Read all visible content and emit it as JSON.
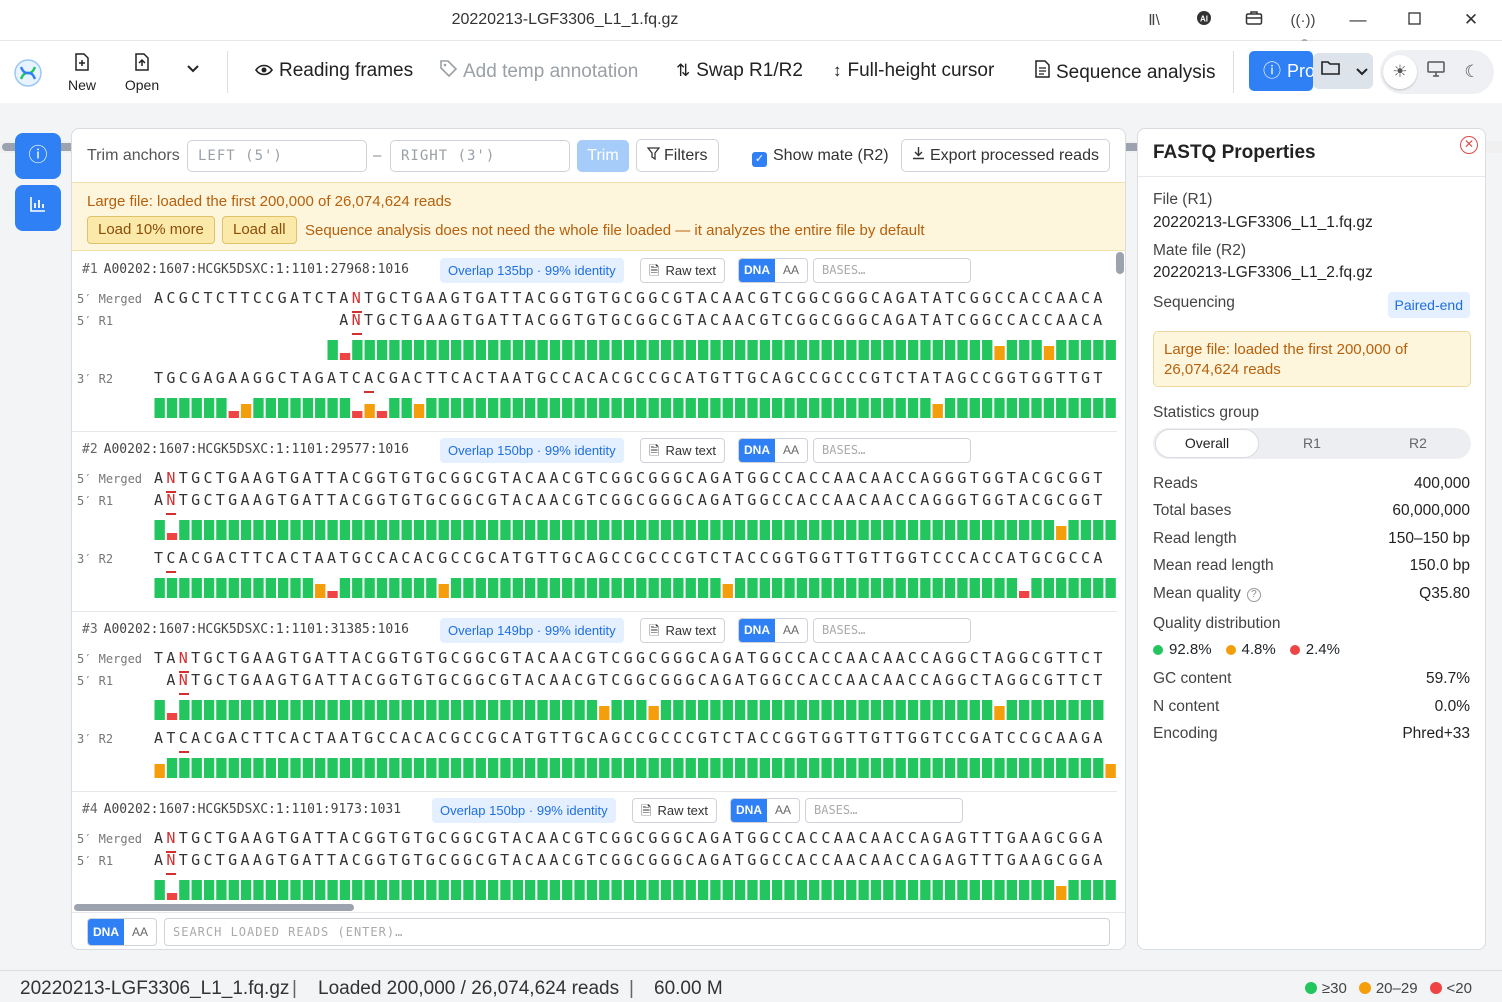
{
  "window": {
    "title": "20220213-LGF3306_L1_1.fq.gz"
  },
  "toolbar": {
    "new_label": "New",
    "open_label": "Open",
    "reading_frames": "Reading frames",
    "add_temp_annotation": "Add temp annotation",
    "swap": "Swap R1/R2",
    "full_height_cursor": "Full-height cursor",
    "sequence_analysis": "Sequence analysis",
    "pro_label": "Pro"
  },
  "controls": {
    "trim_anchors": "Trim anchors",
    "left_placeholder": "LEFT (5')",
    "dash": "–",
    "right_placeholder": "RIGHT (3')",
    "trim": "Trim",
    "filters": "Filters",
    "show_mate": "Show mate (R2)",
    "export": "Export processed reads"
  },
  "banner": {
    "message": "Large file: loaded the first 200,000 of 26,074,624 reads",
    "load_more": "Load 10% more",
    "load_all": "Load all",
    "note": "Sequence analysis does not need the whole file loaded — it analyzes the entire file by default"
  },
  "read_ui": {
    "raw_text": "Raw text",
    "dna": "DNA",
    "aa": "AA",
    "bases_placeholder": "BASES…"
  },
  "row_labels": {
    "merged": "5′ Merged",
    "r1": "5′ R1",
    "r2": "3′ R2"
  },
  "reads": [
    {
      "num": "#1",
      "id": "A00202:1607:HCGK5DSXC:1:1101:27968:1016",
      "overlap": "Overlap 135bp · 99% identity",
      "merged": "ACGCTCTTCCGATCTANTGCTGAAGTGATTACGGTGTGCGGCGTACAACGTCGGCGGGCAGATATCGGCCACCAACA",
      "r1": "ANTGCTGAAGTGATTACGGTGTGCGGCGTACAACGTCGGCGGGCAGATATCGGCCACCAACA",
      "r1_offset": 15,
      "r1_quality": [
        2,
        0,
        2,
        2,
        2,
        2,
        2,
        2,
        2,
        2,
        2,
        2,
        2,
        2,
        2,
        2,
        2,
        2,
        2,
        2,
        2,
        2,
        2,
        2,
        2,
        2,
        2,
        2,
        2,
        2,
        2,
        2,
        2,
        2,
        2,
        2,
        2,
        2,
        2,
        2,
        2,
        2,
        2,
        2,
        2,
        2,
        2,
        2,
        2,
        2,
        2,
        2,
        2,
        2,
        1,
        2,
        2,
        2,
        1,
        2,
        2,
        2,
        2,
        2,
        2,
        2,
        2,
        2,
        2,
        2,
        2,
        2,
        2,
        2,
        2,
        2,
        2
      ],
      "r2": "TGCGAGAAGGCTAGATCACGACTTCACTAATGCCACACGCCGCATGTTGCAGCCGCCCGTCTATAGCCGGTGGTTGT",
      "r2_marks": [
        17
      ],
      "r2_quality": [
        2,
        2,
        2,
        2,
        2,
        2,
        0,
        1,
        2,
        2,
        2,
        2,
        2,
        2,
        2,
        2,
        0,
        1,
        0,
        2,
        2,
        1,
        2,
        2,
        2,
        2,
        2,
        2,
        2,
        2,
        2,
        2,
        2,
        2,
        2,
        2,
        2,
        2,
        2,
        2,
        2,
        2,
        2,
        2,
        2,
        2,
        2,
        2,
        2,
        2,
        2,
        2,
        2,
        2,
        2,
        2,
        2,
        2,
        2,
        2,
        2,
        2,
        2,
        1,
        2,
        2,
        2,
        2,
        2,
        2,
        2,
        2,
        2,
        2,
        2,
        2,
        2,
        2
      ]
    },
    {
      "num": "#2",
      "id": "A00202:1607:HCGK5DSXC:1:1101:29577:1016",
      "overlap": "Overlap 150bp · 99% identity",
      "merged": "ANTGCTGAAGTGATTACGGTGTGCGGCGTACAACGTCGGCGGGCAGATGGCCACCAACAACCAGGGTGGTACGCGGT",
      "r1": "ANTGCTGAAGTGATTACGGTGTGCGGCGTACAACGTCGGCGGGCAGATGGCCACCAACAACCAGGGTGGTACGCGGT",
      "r1_offset": 0,
      "r1_quality": [
        2,
        0,
        2,
        2,
        2,
        2,
        2,
        2,
        2,
        2,
        2,
        2,
        2,
        2,
        2,
        2,
        2,
        2,
        2,
        2,
        2,
        2,
        2,
        2,
        2,
        2,
        2,
        2,
        2,
        2,
        2,
        2,
        2,
        2,
        2,
        2,
        2,
        2,
        2,
        2,
        2,
        2,
        2,
        2,
        2,
        2,
        2,
        2,
        2,
        2,
        2,
        2,
        2,
        2,
        2,
        2,
        2,
        2,
        2,
        2,
        2,
        2,
        2,
        2,
        2,
        2,
        2,
        2,
        2,
        2,
        2,
        2,
        2,
        1,
        2,
        2,
        2,
        2
      ],
      "r2": "TCACGACTTCACTAATGCCACACGCCGCATGTTGCAGCCGCCCGTCTACCGGTGGTTGTTGGTCCCACCATGCGCCA",
      "r2_marks": [
        1
      ],
      "r2_quality": [
        2,
        2,
        2,
        2,
        2,
        2,
        2,
        2,
        2,
        2,
        2,
        2,
        2,
        1,
        0,
        2,
        2,
        2,
        2,
        2,
        2,
        2,
        2,
        1,
        2,
        2,
        2,
        2,
        2,
        2,
        2,
        2,
        2,
        2,
        2,
        2,
        2,
        2,
        2,
        2,
        2,
        2,
        2,
        2,
        2,
        2,
        1,
        2,
        2,
        2,
        2,
        2,
        2,
        2,
        2,
        2,
        2,
        2,
        2,
        2,
        2,
        2,
        2,
        2,
        2,
        2,
        2,
        2,
        2,
        2,
        0,
        2,
        2,
        2,
        2,
        2,
        2,
        2
      ]
    },
    {
      "num": "#3",
      "id": "A00202:1607:HCGK5DSXC:1:1101:31385:1016",
      "overlap": "Overlap 149bp · 99% identity",
      "merged": "TANTGCTGAAGTGATTACGGTGTGCGGCGTACAACGTCGGCGGGCAGATGGCCACCAACAACCAGGCTAGGCGTTCT",
      "r1": "ANTGCTGAAGTGATTACGGTGTGCGGCGTACAACGTCGGCGGGCAGATGGCCACCAACAACCAGGCTAGGCGTTCT",
      "r1_offset": 1,
      "r1_quality": [
        2,
        0,
        2,
        2,
        2,
        2,
        2,
        2,
        2,
        2,
        2,
        2,
        2,
        2,
        2,
        2,
        2,
        2,
        2,
        2,
        2,
        2,
        2,
        2,
        2,
        2,
        2,
        2,
        2,
        2,
        2,
        2,
        2,
        2,
        2,
        2,
        1,
        2,
        2,
        2,
        1,
        2,
        2,
        2,
        2,
        2,
        2,
        2,
        2,
        2,
        2,
        2,
        2,
        2,
        2,
        2,
        2,
        2,
        2,
        2,
        2,
        2,
        2,
        2,
        2,
        2,
        2,
        2,
        1,
        2,
        2,
        2,
        2,
        2,
        2,
        2,
        2
      ],
      "r2": "ATCACGACTTCACTAATGCCACACGCCGCATGTTGCAGCCGCCCGTCTACCGGTGGTTGTTGGTCCGATCCGCAAGA",
      "r2_marks": [
        2
      ],
      "r2_quality": [
        1,
        2,
        2,
        2,
        2,
        2,
        2,
        2,
        2,
        2,
        2,
        2,
        2,
        2,
        2,
        2,
        2,
        2,
        2,
        2,
        2,
        2,
        2,
        2,
        2,
        2,
        2,
        2,
        2,
        2,
        2,
        2,
        2,
        2,
        2,
        2,
        2,
        2,
        2,
        2,
        2,
        2,
        2,
        2,
        2,
        2,
        2,
        2,
        2,
        2,
        2,
        2,
        2,
        2,
        2,
        2,
        2,
        2,
        2,
        2,
        2,
        2,
        2,
        2,
        2,
        2,
        2,
        2,
        2,
        2,
        2,
        2,
        2,
        2,
        2,
        2,
        2,
        1
      ]
    },
    {
      "num": "#4",
      "id": "A00202:1607:HCGK5DSXC:1:1101:9173:1031",
      "overlap": "Overlap 150bp · 99% identity",
      "merged": "ANTGCTGAAGTGATTACGGTGTGCGGCGTACAACGTCGGCGGGCAGATGGCCACCAACAACCAGAGTTTGAAGCGGA",
      "r1": "ANTGCTGAAGTGATTACGGTGTGCGGCGTACAACGTCGGCGGGCAGATGGCCACCAACAACCAGAGTTTGAAGCGGA",
      "r1_offset": 0,
      "r1_quality": [
        2,
        0,
        2,
        2,
        2,
        2,
        2,
        2,
        2,
        2,
        2,
        2,
        2,
        2,
        2,
        2,
        2,
        2,
        2,
        2,
        2,
        2,
        2,
        2,
        2,
        2,
        2,
        2,
        2,
        2,
        2,
        2,
        2,
        2,
        2,
        2,
        2,
        2,
        2,
        2,
        2,
        2,
        2,
        2,
        2,
        2,
        2,
        2,
        2,
        2,
        2,
        2,
        2,
        2,
        2,
        2,
        2,
        2,
        2,
        2,
        2,
        2,
        2,
        2,
        2,
        2,
        2,
        2,
        2,
        2,
        2,
        2,
        2,
        1,
        2,
        2,
        2,
        2
      ],
      "r2": "",
      "r2_marks": [],
      "r2_quality": []
    }
  ],
  "search": {
    "dna": "DNA",
    "aa": "AA",
    "placeholder": "SEARCH LOADED READS (ENTER)…"
  },
  "properties": {
    "title": "FASTQ Properties",
    "file_r1_label": "File (R1)",
    "file_r1": "20220213-LGF3306_L1_1.fq.gz",
    "mate_label": "Mate file (R2)",
    "mate_file": "20220213-LGF3306_L1_2.fq.gz",
    "sequencing_label": "Sequencing",
    "sequencing": "Paired-end",
    "warning": "Large file: loaded the first 200,000 of 26,074,624 reads",
    "stats_group_label": "Statistics group",
    "groups": [
      "Overall",
      "R1",
      "R2"
    ],
    "stats": [
      {
        "k": "Reads",
        "v": "400,000"
      },
      {
        "k": "Total bases",
        "v": "60,000,000"
      },
      {
        "k": "Read length",
        "v": "150–150 bp"
      },
      {
        "k": "Mean read length",
        "v": "150.0 bp"
      },
      {
        "k": "Mean quality",
        "v": "Q35.80"
      }
    ],
    "quality_dist_label": "Quality distribution",
    "quality_dist": [
      {
        "v": "92.8%",
        "color": "#22c55e"
      },
      {
        "v": "4.8%",
        "color": "#f59e0b"
      },
      {
        "v": "2.4%",
        "color": "#ef4444"
      }
    ],
    "stats2": [
      {
        "k": "GC content",
        "v": "59.7%"
      },
      {
        "k": "N content",
        "v": "0.0%"
      },
      {
        "k": "Encoding",
        "v": "Phred+33"
      }
    ]
  },
  "status": {
    "file": "20220213-LGF3306_L1_1.fq.gz",
    "loaded": "Loaded 200,000 / 26,074,624 reads",
    "size": "60.00 M",
    "sep": "|",
    "legend": [
      {
        "label": "≥30",
        "color": "#22c55e"
      },
      {
        "label": "20–29",
        "color": "#f59e0b"
      },
      {
        "label": "<20",
        "color": "#ef4444"
      }
    ]
  },
  "colors": {
    "accent": "#2f7ff5",
    "q_high": "#22c55e",
    "q_mid": "#f59e0b",
    "q_low": "#ef4444"
  }
}
